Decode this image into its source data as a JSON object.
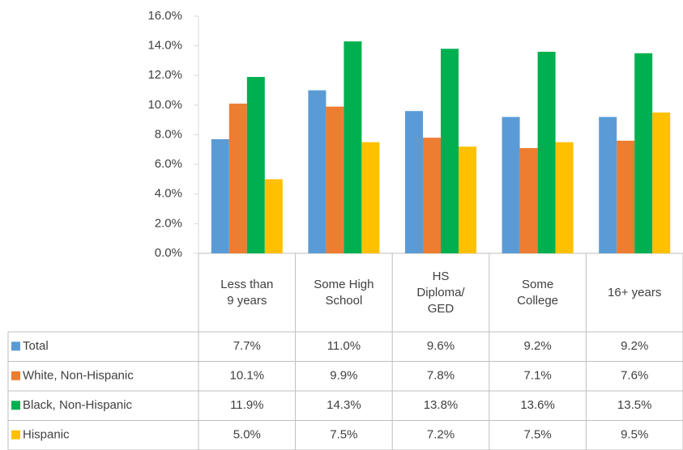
{
  "chart_data": {
    "type": "bar",
    "categories": [
      "Less than 9 years",
      "Some High School",
      "HS Diploma/ GED",
      "Some College",
      "16+ years"
    ],
    "series": [
      {
        "name": "Total",
        "color": "#5b9bd5",
        "values": [
          7.7,
          11.0,
          9.6,
          9.2,
          9.2
        ],
        "value_labels": [
          "7.7%",
          "11.0%",
          "9.6%",
          "9.2%",
          "9.2%"
        ]
      },
      {
        "name": "White, Non-Hispanic",
        "color": "#ed7d31",
        "values": [
          10.1,
          9.9,
          7.8,
          7.1,
          7.6
        ],
        "value_labels": [
          "10.1%",
          "9.9%",
          "7.8%",
          "7.1%",
          "7.6%"
        ]
      },
      {
        "name": "Black, Non-Hispanic",
        "color": "#00b050",
        "values": [
          11.9,
          14.3,
          13.8,
          13.6,
          13.5
        ],
        "value_labels": [
          "11.9%",
          "14.3%",
          "13.8%",
          "13.6%",
          "13.5%"
        ]
      },
      {
        "name": "Hispanic",
        "color": "#ffc000",
        "values": [
          5.0,
          7.5,
          7.2,
          7.5,
          9.5
        ],
        "value_labels": [
          "5.0%",
          "7.5%",
          "7.2%",
          "7.5%",
          "9.5%"
        ]
      }
    ],
    "ylim": [
      0,
      16
    ],
    "yticks": [
      {
        "value": 0,
        "label": "0.0%"
      },
      {
        "value": 2,
        "label": "2.0%"
      },
      {
        "value": 4,
        "label": "4.0%"
      },
      {
        "value": 6,
        "label": "6.0%"
      },
      {
        "value": 8,
        "label": "8.0%"
      },
      {
        "value": 10,
        "label": "10.0%"
      },
      {
        "value": 12,
        "label": "12.0%"
      },
      {
        "value": 14,
        "label": "14.0%"
      },
      {
        "value": 16,
        "label": "16.0%"
      }
    ],
    "grid": false
  }
}
